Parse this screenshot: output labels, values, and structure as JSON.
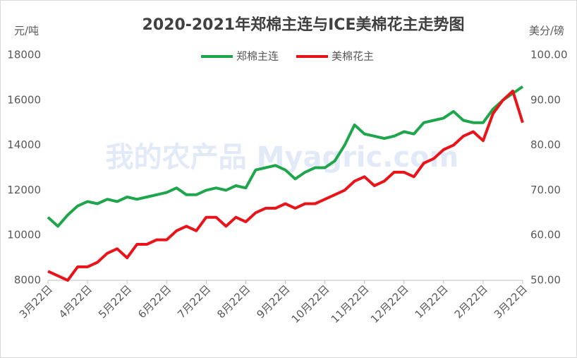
{
  "chart_data": {
    "type": "line",
    "title": "2020-2021年郑棉主连与ICE美棉花主走势图",
    "y_label": "元/吨",
    "y2_label": "美分/磅",
    "watermark": "我的农产品 Myagric.com",
    "categories": [
      "3月22日",
      null,
      null,
      null,
      "4月22日",
      null,
      null,
      null,
      "5月22日",
      null,
      null,
      null,
      "6月22日",
      null,
      null,
      null,
      "7月22日",
      null,
      null,
      null,
      "8月22日",
      null,
      null,
      null,
      "9月22日",
      null,
      null,
      null,
      "10月22日",
      null,
      null,
      null,
      "11月22日",
      null,
      null,
      null,
      "12月22日",
      null,
      null,
      null,
      "1月22日",
      null,
      null,
      null,
      "2月22日",
      null,
      null,
      null,
      "3月22日"
    ],
    "series": [
      {
        "name": "郑棉主连",
        "color": "#1fa64c",
        "axis": "y",
        "values": [
          10800,
          10400,
          10900,
          11300,
          11500,
          11400,
          11600,
          11500,
          11700,
          11600,
          11700,
          11800,
          11900,
          12100,
          11800,
          11800,
          12000,
          12100,
          12000,
          12200,
          12100,
          12900,
          13000,
          13100,
          12900,
          12500,
          12800,
          13000,
          13000,
          13300,
          14000,
          14900,
          14500,
          14400,
          14300,
          14400,
          14600,
          14500,
          15000,
          15100,
          15200,
          15500,
          15100,
          15000,
          15000,
          15600,
          16000,
          16300,
          16600
        ]
      },
      {
        "name": "美棉花主",
        "color": "#e8141a",
        "axis": "y2",
        "values": [
          52,
          51,
          50,
          53,
          53,
          54,
          56,
          57,
          55,
          58,
          58,
          59,
          59,
          61,
          62,
          61,
          64,
          64,
          62,
          64,
          63,
          65,
          66,
          66,
          67,
          66,
          67,
          67,
          68,
          69,
          70,
          72,
          73,
          71,
          72,
          74,
          74,
          73,
          76,
          77,
          79,
          80,
          82,
          83,
          81,
          87,
          90,
          92,
          85
        ]
      }
    ],
    "ylim": [
      8000,
      18000
    ],
    "yticks": [
      8000,
      10000,
      12000,
      14000,
      16000,
      18000
    ],
    "y2lim": [
      50,
      100
    ],
    "y2ticks": [
      {
        "value": 50,
        "label": "50.00"
      },
      {
        "value": 60,
        "label": "60.00"
      },
      {
        "value": 70,
        "label": "70.00"
      },
      {
        "value": 80,
        "label": "80.00"
      },
      {
        "value": 90,
        "label": "90.00"
      },
      {
        "value": 100,
        "label": "100.00"
      }
    ],
    "legend": "top"
  }
}
